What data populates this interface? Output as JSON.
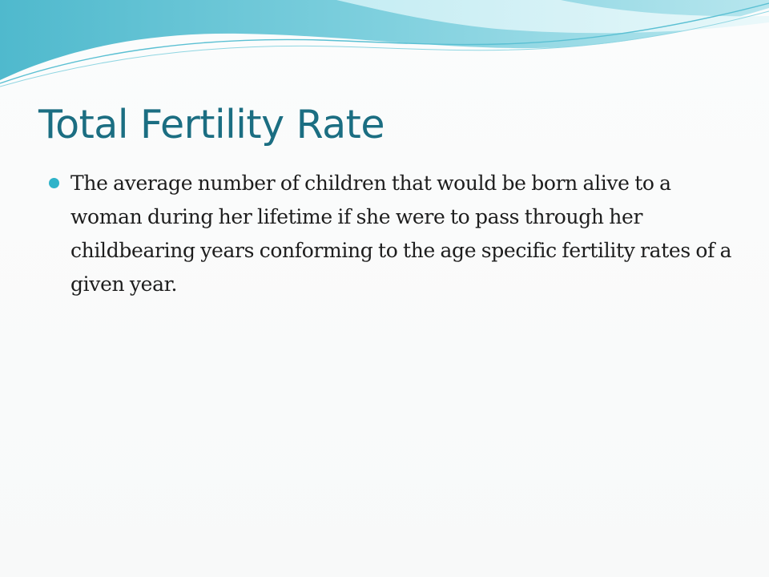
{
  "slide": {
    "title": "Total Fertility Rate",
    "bullets": [
      "The average number of children that would be born alive to a woman during her lifetime if she were to pass through her childbearing years conforming to the age specific fertility rates of a given year."
    ]
  },
  "colors": {
    "title": "#1b6e82",
    "bullet": "#2eb3c9",
    "wave_light": "#a8e0e9",
    "wave_mid": "#5cc2d5",
    "background": "#fafbfb"
  }
}
